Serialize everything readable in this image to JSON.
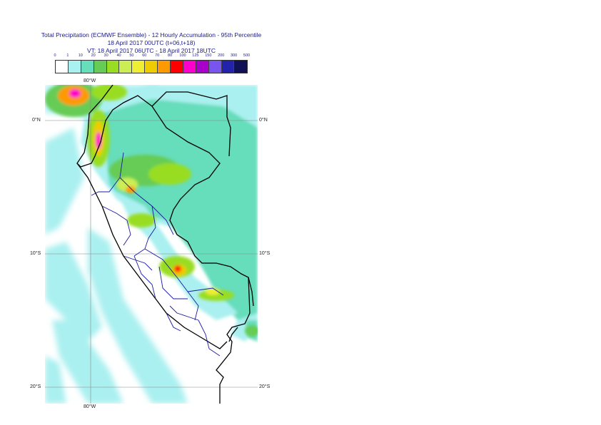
{
  "header": {
    "title_line1": "Total Precipitation (ECMWF Ensemble) - 12 Hourly Accumulation - 95th Percentile",
    "title_line2": "18 April 2017 00UTC (t+06,t+18)",
    "title_line3": "VT: 18 April 2017 06UTC - 18 April 2017 18UTC"
  },
  "colorbar": {
    "labels": [
      "0",
      "1",
      "10",
      "20",
      "30",
      "40",
      "50",
      "60",
      "70",
      "80",
      "100",
      "125",
      "150",
      "200",
      "300",
      "500"
    ],
    "colors": [
      "#ffffff",
      "#aaf0f0",
      "#66ddbb",
      "#66cc55",
      "#99dd22",
      "#ccee55",
      "#eeee33",
      "#eecc00",
      "#ff9900",
      "#ff0000",
      "#ff00cc",
      "#aa00cc",
      "#7755ee",
      "#2222aa",
      "#111155"
    ]
  },
  "axes": {
    "top_lon": "80°W",
    "bottom_lon": "80°W",
    "lat_0_left": "0°N",
    "lat_0_right": "0°N",
    "lat_10_left": "10°S",
    "lat_10_right": "10°S",
    "lat_20_left": "20°S",
    "lat_20_right": "20°S"
  }
}
